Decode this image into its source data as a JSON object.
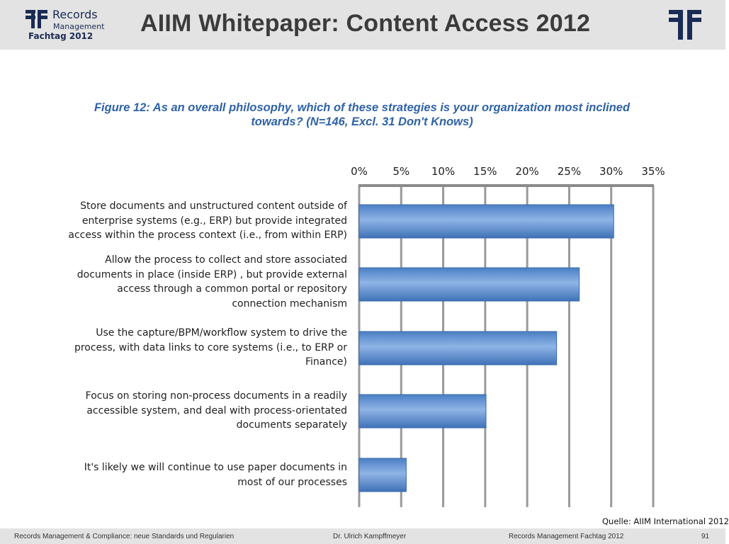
{
  "header": {
    "logo": {
      "records": "Records",
      "management": "Management",
      "fachtag": "Fachtag 2012"
    },
    "title": "AIIM Whitepaper: Content Access 2012"
  },
  "figure": {
    "title_line1": "Figure 12: As an overall philosophy, which of these strategies is your organization most inclined",
    "title_line2": "towards? (N=146, Excl. 31 Don't Knows)"
  },
  "chart_data": {
    "type": "bar",
    "orientation": "horizontal",
    "title": "Figure 12: As an overall philosophy, which of these strategies is your organization most inclined towards? (N=146, Excl. 31 Don't Knows)",
    "categories": [
      [
        "Store documents and unstructured content outside of",
        "enterprise systems (e.g., ERP) but provide integrated",
        "access within the process context (i.e., from within ERP)"
      ],
      [
        "Allow the process to collect and store associated",
        "documents in place (inside ERP) , but provide external",
        "access through a common portal or repository",
        "connection mechanism"
      ],
      [
        "Use the capture/BPM/workflow system to drive the",
        "process, with data links to core systems (i.e., to ERP or",
        "Finance)"
      ],
      [
        "Focus on storing non-process documents in a readily",
        "accessible system, and deal with process-orientated",
        "documents separately"
      ],
      [
        "It's likely we will continue to use paper documents in",
        "most of our processes"
      ]
    ],
    "values": [
      30.3,
      26.2,
      23.5,
      15.1,
      5.6
    ],
    "xlim": [
      0,
      35
    ],
    "ticks": [
      "0%",
      "5%",
      "10%",
      "15%",
      "20%",
      "25%",
      "30%",
      "35%"
    ],
    "grid": true,
    "bar_color": "#5b8fd1"
  },
  "source": "Quelle: AIIM International 2012",
  "footer": {
    "left": "Records Management & Compliance: neue Standards und Regularien",
    "center": "Dr. Ulrich Kampffmeyer",
    "right": "Records Management Fachtag 2012",
    "page": "91"
  }
}
